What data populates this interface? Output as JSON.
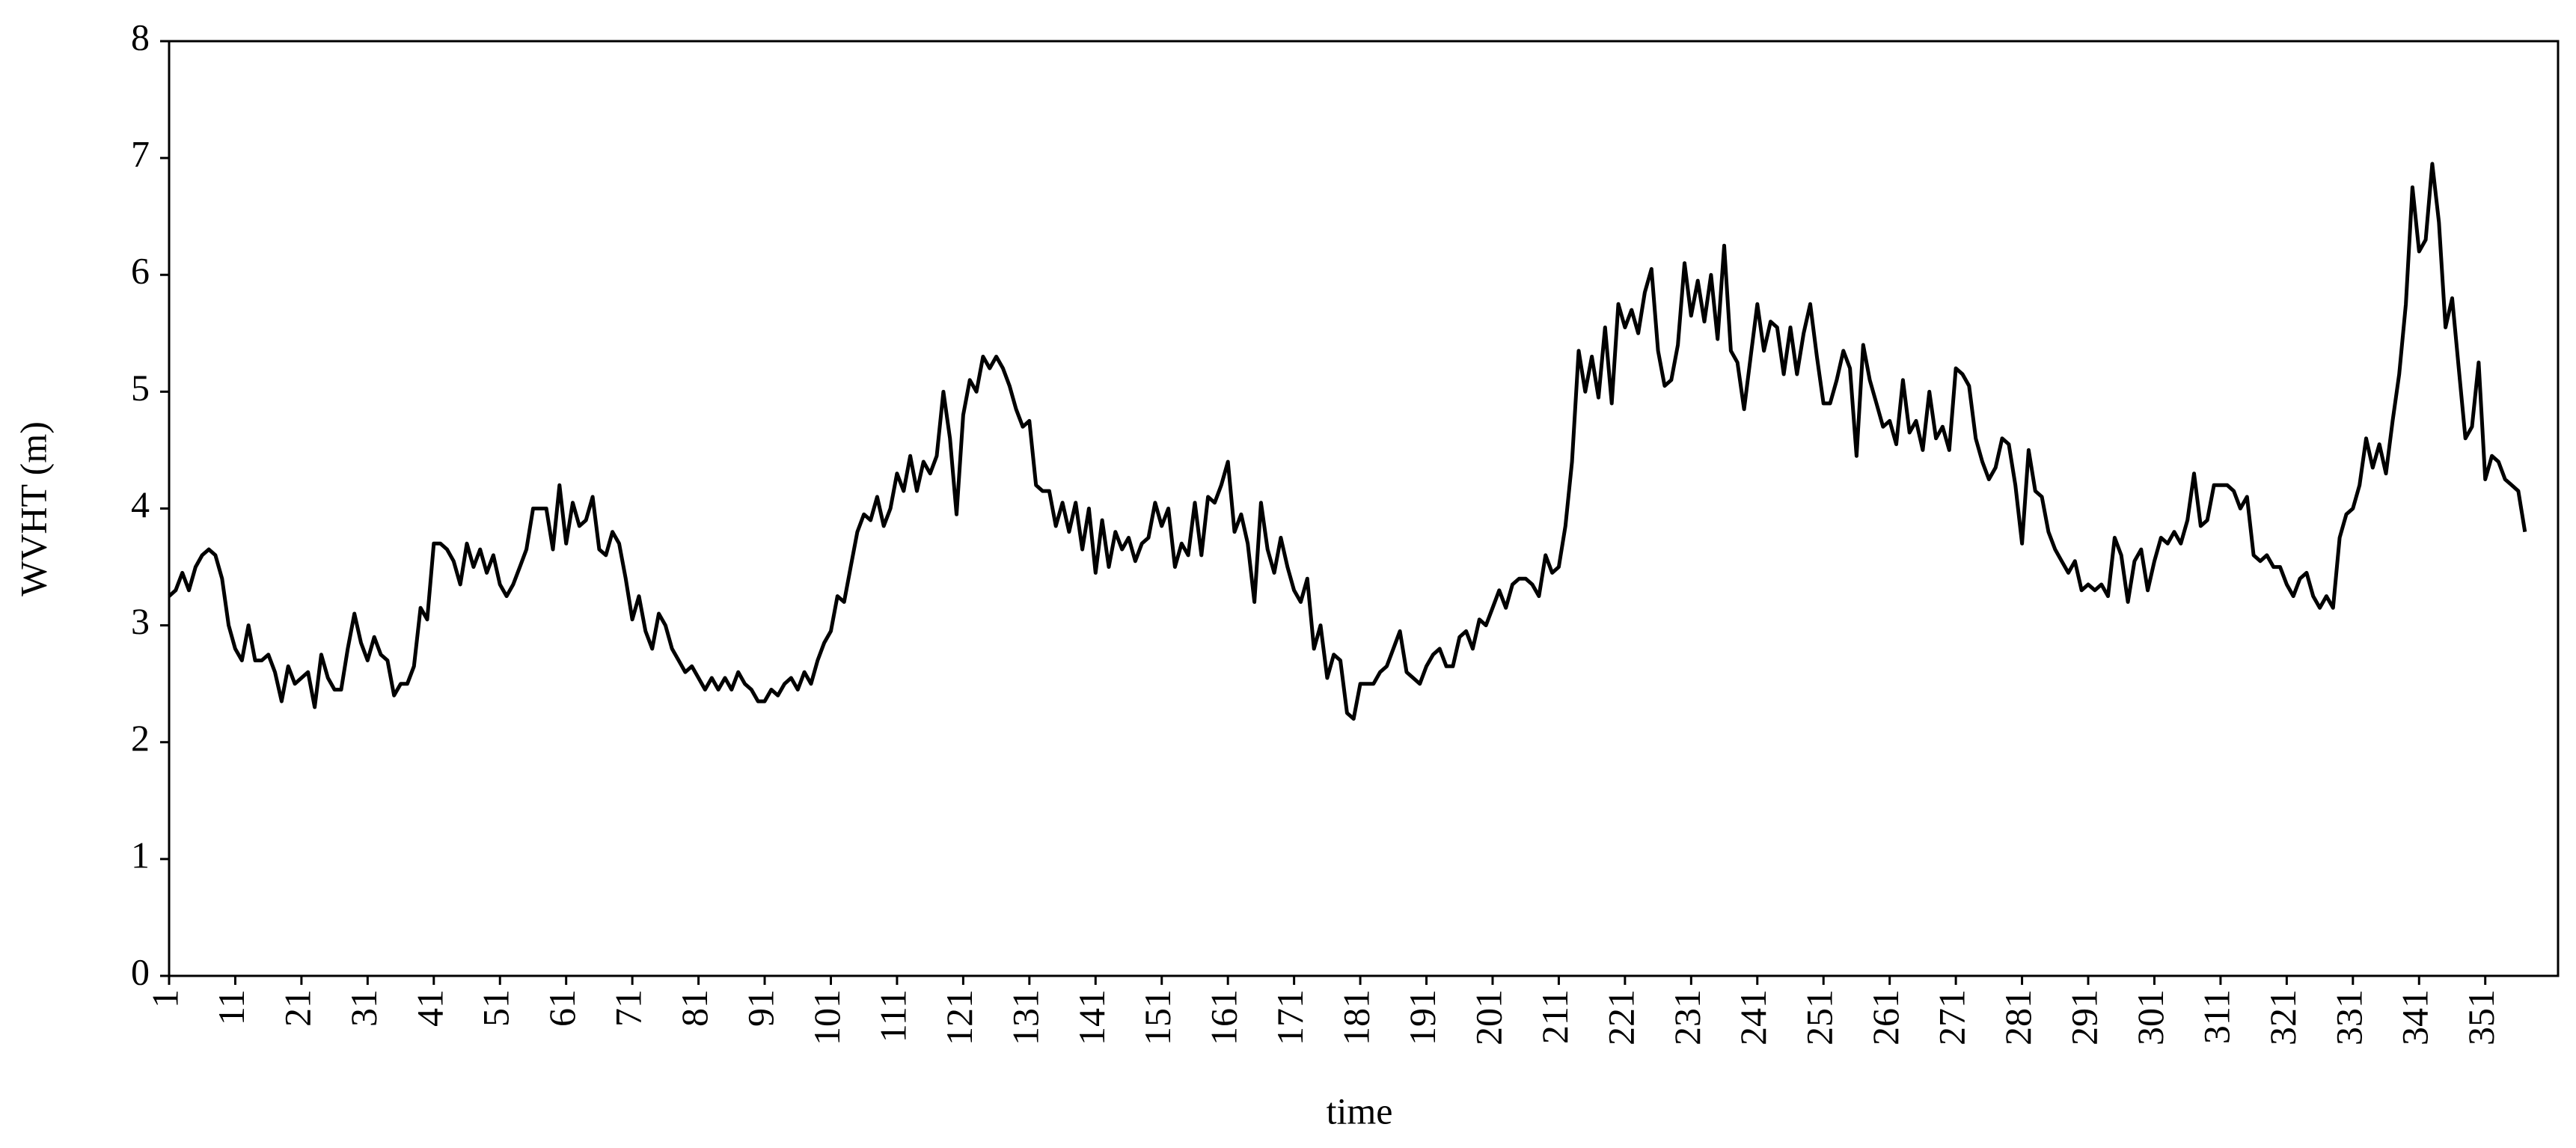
{
  "chart_data": {
    "type": "line",
    "y_label": "WVHT (m)",
    "x_label": "time",
    "x": [
      1,
      2,
      3,
      4,
      5,
      6,
      7,
      8,
      9,
      10,
      11,
      12,
      13,
      14,
      15,
      16,
      17,
      18,
      19,
      20,
      21,
      22,
      23,
      24,
      25,
      26,
      27,
      28,
      29,
      30,
      31,
      32,
      33,
      34,
      35,
      36,
      37,
      38,
      39,
      40,
      41,
      42,
      43,
      44,
      45,
      46,
      47,
      48,
      49,
      50,
      51,
      52,
      53,
      54,
      55,
      56,
      57,
      58,
      59,
      60,
      61,
      62,
      63,
      64,
      65,
      66,
      67,
      68,
      69,
      70,
      71,
      72,
      73,
      74,
      75,
      76,
      77,
      78,
      79,
      80,
      81,
      82,
      83,
      84,
      85,
      86,
      87,
      88,
      89,
      90,
      91,
      92,
      93,
      94,
      95,
      96,
      97,
      98,
      99,
      100,
      101,
      102,
      103,
      104,
      105,
      106,
      107,
      108,
      109,
      110,
      111,
      112,
      113,
      114,
      115,
      116,
      117,
      118,
      119,
      120,
      121,
      122,
      123,
      124,
      125,
      126,
      127,
      128,
      129,
      130,
      131,
      132,
      133,
      134,
      135,
      136,
      137,
      138,
      139,
      140,
      141,
      142,
      143,
      144,
      145,
      146,
      147,
      148,
      149,
      150,
      151,
      152,
      153,
      154,
      155,
      156,
      157,
      158,
      159,
      160,
      161,
      162,
      163,
      164,
      165,
      166,
      167,
      168,
      169,
      170,
      171,
      172,
      173,
      174,
      175,
      176,
      177,
      178,
      179,
      180,
      181,
      182,
      183,
      184,
      185,
      186,
      187,
      188,
      189,
      190,
      191,
      192,
      193,
      194,
      195,
      196,
      197,
      198,
      199,
      200,
      201,
      202,
      203,
      204,
      205,
      206,
      207,
      208,
      209,
      210,
      211,
      212,
      213,
      214,
      215,
      216,
      217,
      218,
      219,
      220,
      221,
      222,
      223,
      224,
      225,
      226,
      227,
      228,
      229,
      230,
      231,
      232,
      233,
      234,
      235,
      236,
      237,
      238,
      239,
      240,
      241,
      242,
      243,
      244,
      245,
      246,
      247,
      248,
      249,
      250,
      251,
      252,
      253,
      254,
      255,
      256,
      257,
      258,
      259,
      260,
      261,
      262,
      263,
      264,
      265,
      266,
      267,
      268,
      269,
      270,
      271,
      272,
      273,
      274,
      275,
      276,
      277,
      278,
      279,
      280,
      281,
      282,
      283,
      284,
      285,
      286,
      287,
      288,
      289,
      290,
      291,
      292,
      293,
      294,
      295,
      296,
      297,
      298,
      299,
      300,
      301,
      302,
      303,
      304,
      305,
      306,
      307,
      308,
      309,
      310,
      311,
      312,
      313,
      314,
      315,
      316,
      317,
      318,
      319,
      320,
      321,
      322,
      323,
      324,
      325,
      326,
      327,
      328,
      329,
      330,
      331,
      332,
      333,
      334,
      335,
      336,
      337,
      338,
      339,
      340,
      341,
      342,
      343,
      344,
      345,
      346,
      347,
      348,
      349,
      350,
      351,
      352,
      353,
      354,
      355,
      356,
      357
    ],
    "series": [
      {
        "color": "#000000",
        "values": [
          3.25,
          3.3,
          3.45,
          3.3,
          3.5,
          3.6,
          3.65,
          3.6,
          3.4,
          3.0,
          2.8,
          2.7,
          3.0,
          2.7,
          2.7,
          2.75,
          2.6,
          2.35,
          2.65,
          2.5,
          2.55,
          2.6,
          2.3,
          2.75,
          2.55,
          2.45,
          2.45,
          2.8,
          3.1,
          2.85,
          2.7,
          2.9,
          2.75,
          2.7,
          2.4,
          2.5,
          2.5,
          2.65,
          3.15,
          3.05,
          3.7,
          3.7,
          3.65,
          3.55,
          3.35,
          3.7,
          3.5,
          3.65,
          3.45,
          3.6,
          3.35,
          3.25,
          3.35,
          3.5,
          3.65,
          4.0,
          4.0,
          4.0,
          3.65,
          4.2,
          3.7,
          4.05,
          3.85,
          3.9,
          4.1,
          3.65,
          3.6,
          3.8,
          3.7,
          3.4,
          3.05,
          3.25,
          2.95,
          2.8,
          3.1,
          3.0,
          2.8,
          2.7,
          2.6,
          2.65,
          2.55,
          2.45,
          2.55,
          2.45,
          2.55,
          2.45,
          2.6,
          2.5,
          2.45,
          2.35,
          2.35,
          2.45,
          2.4,
          2.5,
          2.55,
          2.45,
          2.6,
          2.5,
          2.7,
          2.85,
          2.95,
          3.25,
          3.2,
          3.5,
          3.8,
          3.95,
          3.9,
          4.1,
          3.85,
          4.0,
          4.3,
          4.15,
          4.45,
          4.15,
          4.4,
          4.3,
          4.45,
          5.0,
          4.6,
          3.95,
          4.8,
          5.1,
          5.0,
          5.3,
          5.2,
          5.3,
          5.2,
          5.05,
          4.85,
          4.7,
          4.75,
          4.2,
          4.15,
          4.15,
          3.85,
          4.05,
          3.8,
          4.05,
          3.65,
          4.0,
          3.45,
          3.9,
          3.5,
          3.8,
          3.65,
          3.75,
          3.55,
          3.7,
          3.75,
          4.05,
          3.85,
          4.0,
          3.5,
          3.7,
          3.6,
          4.05,
          3.6,
          4.1,
          4.05,
          4.2,
          4.4,
          3.8,
          3.95,
          3.7,
          3.2,
          4.05,
          3.65,
          3.45,
          3.75,
          3.5,
          3.3,
          3.2,
          3.4,
          2.8,
          3.0,
          2.55,
          2.75,
          2.7,
          2.25,
          2.2,
          2.5,
          2.5,
          2.5,
          2.6,
          2.65,
          2.8,
          2.95,
          2.6,
          2.55,
          2.5,
          2.65,
          2.75,
          2.8,
          2.65,
          2.65,
          2.9,
          2.95,
          2.8,
          3.05,
          3.0,
          3.15,
          3.3,
          3.15,
          3.35,
          3.4,
          3.4,
          3.35,
          3.25,
          3.6,
          3.45,
          3.5,
          3.85,
          4.4,
          5.35,
          5.0,
          5.3,
          4.95,
          5.55,
          4.9,
          5.75,
          5.55,
          5.7,
          5.5,
          5.85,
          6.05,
          5.35,
          5.05,
          5.1,
          5.4,
          6.1,
          5.65,
          5.95,
          5.6,
          6.0,
          5.45,
          6.25,
          5.35,
          5.25,
          4.85,
          5.3,
          5.75,
          5.35,
          5.6,
          5.55,
          5.15,
          5.55,
          5.15,
          5.5,
          5.75,
          5.3,
          4.9,
          4.9,
          5.1,
          5.35,
          5.2,
          4.45,
          5.4,
          5.1,
          4.9,
          4.7,
          4.75,
          4.55,
          5.1,
          4.65,
          4.75,
          4.5,
          5.0,
          4.6,
          4.7,
          4.5,
          5.2,
          5.15,
          5.05,
          4.6,
          4.4,
          4.25,
          4.35,
          4.6,
          4.55,
          4.2,
          3.7,
          4.5,
          4.15,
          4.1,
          3.8,
          3.65,
          3.55,
          3.45,
          3.55,
          3.3,
          3.35,
          3.3,
          3.35,
          3.25,
          3.75,
          3.6,
          3.2,
          3.55,
          3.65,
          3.3,
          3.55,
          3.75,
          3.7,
          3.8,
          3.7,
          3.9,
          4.3,
          3.85,
          3.9,
          4.2,
          4.2,
          4.2,
          4.15,
          4.0,
          4.1,
          3.6,
          3.55,
          3.6,
          3.5,
          3.5,
          3.35,
          3.25,
          3.4,
          3.45,
          3.25,
          3.15,
          3.25,
          3.15,
          3.75,
          3.95,
          4.0,
          4.2,
          4.6,
          4.35,
          4.55,
          4.3,
          4.75,
          5.15,
          5.75,
          6.75,
          6.2,
          6.3,
          6.95,
          6.45,
          5.55,
          5.8,
          5.2,
          4.6,
          4.7,
          5.25,
          4.25,
          4.45,
          4.4,
          4.25,
          4.2,
          4.15,
          3.8
        ]
      }
    ],
    "xlim": [
      1,
      362
    ],
    "xticks": [
      1,
      11,
      21,
      31,
      41,
      51,
      61,
      71,
      81,
      91,
      101,
      111,
      121,
      131,
      141,
      151,
      161,
      171,
      181,
      191,
      201,
      211,
      221,
      231,
      241,
      251,
      261,
      271,
      281,
      291,
      301,
      311,
      321,
      331,
      341,
      351
    ],
    "ylim": [
      0,
      8
    ],
    "yticks": [
      0,
      1,
      2,
      3,
      4,
      5,
      6,
      7,
      8
    ],
    "grid": false
  }
}
